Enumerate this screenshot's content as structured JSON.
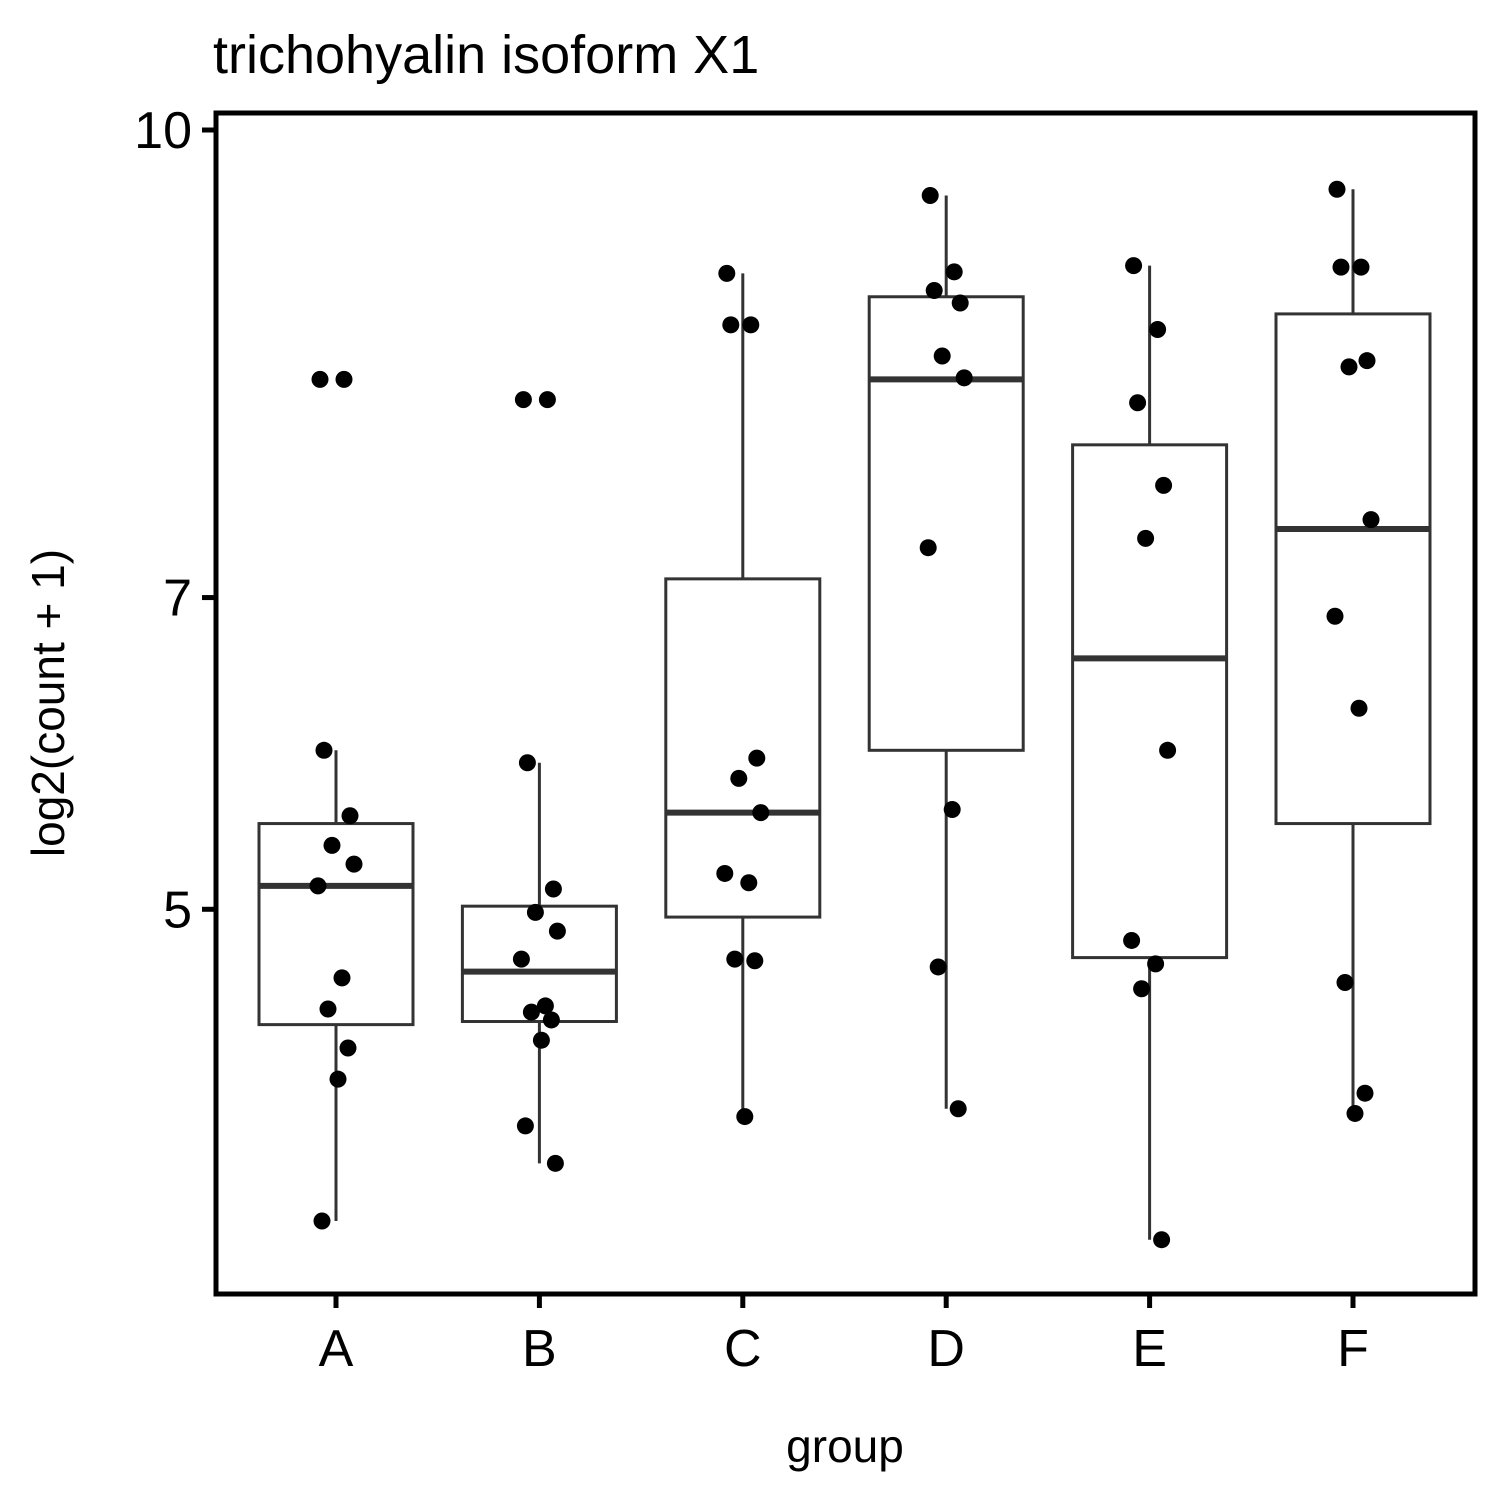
{
  "chart_data": {
    "type": "boxplot",
    "title": "trichohyalin isoform X1",
    "xlabel": "group",
    "ylabel": "log2(count + 1)",
    "ylim": [
      2.65,
      10.05
    ],
    "yticks": [
      5,
      7,
      10
    ],
    "grid": false,
    "legend": "none",
    "categories": [
      "A",
      "B",
      "C",
      "D",
      "E",
      "F"
    ],
    "boxes": [
      {
        "group": "A",
        "lower_whisker": 3.0,
        "q1": 4.26,
        "median": 5.15,
        "q3": 5.55,
        "upper_whisker": 6.02
      },
      {
        "group": "B",
        "lower_whisker": 3.37,
        "q1": 4.28,
        "median": 4.6,
        "q3": 5.02,
        "upper_whisker": 5.94
      },
      {
        "group": "C",
        "lower_whisker": 3.67,
        "q1": 4.95,
        "median": 5.62,
        "q3": 7.12,
        "upper_whisker": 9.08
      },
      {
        "group": "D",
        "lower_whisker": 3.72,
        "q1": 6.02,
        "median": 8.4,
        "q3": 8.93,
        "upper_whisker": 9.58
      },
      {
        "group": "E",
        "lower_whisker": 2.88,
        "q1": 4.69,
        "median": 6.61,
        "q3": 7.98,
        "upper_whisker": 9.13
      },
      {
        "group": "F",
        "lower_whisker": 3.69,
        "q1": 5.55,
        "median": 7.44,
        "q3": 8.82,
        "upper_whisker": 9.62
      }
    ],
    "points": [
      {
        "group": "A",
        "y": [
          8.4,
          8.4,
          6.02,
          5.6,
          5.41,
          5.29,
          5.15,
          4.56,
          4.36,
          4.11,
          3.91,
          3.0
        ]
      },
      {
        "group": "B",
        "y": [
          8.27,
          8.27,
          5.94,
          5.13,
          4.98,
          4.86,
          4.68,
          4.38,
          4.34,
          4.29,
          4.16,
          3.61,
          3.37
        ]
      },
      {
        "group": "C",
        "y": [
          9.08,
          8.75,
          8.75,
          5.97,
          5.84,
          5.62,
          5.23,
          5.17,
          4.68,
          4.67,
          3.67
        ]
      },
      {
        "group": "D",
        "y": [
          9.58,
          9.09,
          8.97,
          8.89,
          8.55,
          8.41,
          7.32,
          5.64,
          4.63,
          3.72
        ]
      },
      {
        "group": "E",
        "y": [
          9.13,
          8.72,
          8.25,
          7.72,
          7.38,
          6.02,
          4.8,
          4.65,
          4.49,
          2.88
        ]
      },
      {
        "group": "F",
        "y": [
          9.62,
          9.12,
          9.12,
          8.52,
          8.48,
          7.5,
          6.88,
          6.29,
          4.53,
          3.82,
          3.69
        ]
      }
    ]
  }
}
